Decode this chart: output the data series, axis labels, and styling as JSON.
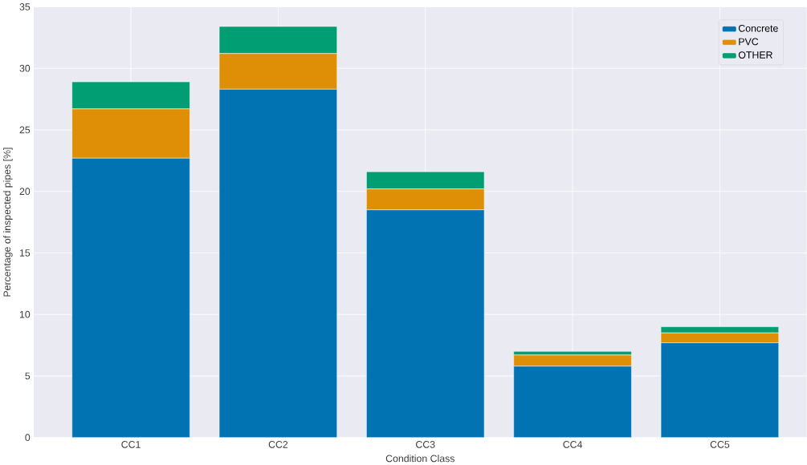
{
  "chart_data": {
    "type": "bar",
    "stacked": true,
    "xlabel": "Condition Class",
    "ylabel": "Percentage of inspected pipes [%]",
    "categories": [
      "CC1",
      "CC2",
      "CC3",
      "CC4",
      "CC5"
    ],
    "series": [
      {
        "name": "Concrete",
        "color": "#0173b2",
        "values": [
          22.7,
          28.3,
          18.5,
          5.8,
          7.7
        ]
      },
      {
        "name": "PVC",
        "color": "#de8f05",
        "values": [
          4.0,
          2.9,
          1.7,
          0.9,
          0.8
        ]
      },
      {
        "name": "OTHER",
        "color": "#029e73",
        "values": [
          2.2,
          2.2,
          1.4,
          0.3,
          0.5
        ]
      }
    ],
    "ylim": [
      0,
      35
    ],
    "yticks": [
      0,
      5,
      10,
      15,
      20,
      25,
      30,
      35
    ],
    "grid": true,
    "legend": "top right"
  }
}
